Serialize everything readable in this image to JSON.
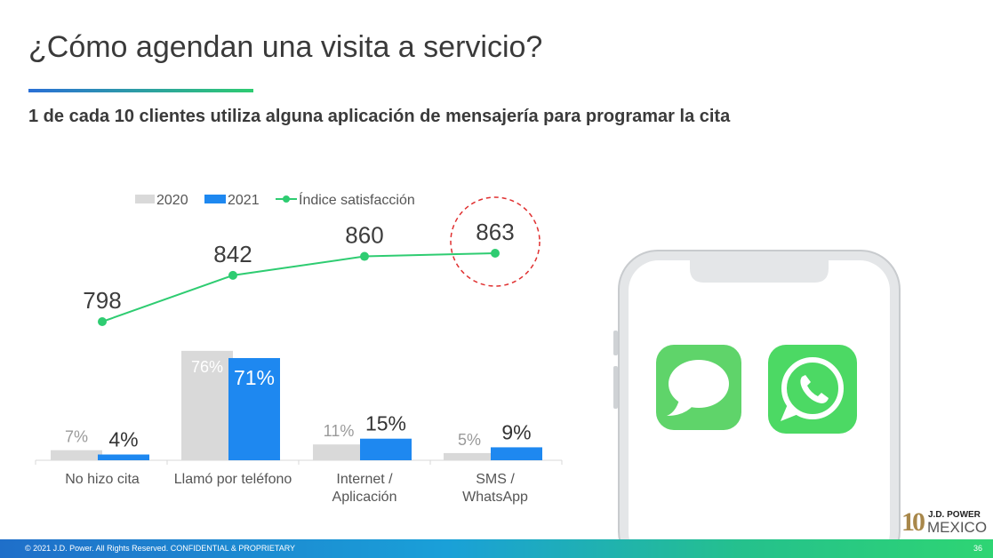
{
  "title": "¿Cómo agendan una visita a servicio?",
  "subtitle": "1 de cada 10 clientes utiliza alguna aplicación de mensajería para programar la cita",
  "chart_data": {
    "type": "bar",
    "categories": [
      "No hizo cita",
      "Llamó por teléfono",
      "Internet / Aplicación",
      "SMS / WhatsApp"
    ],
    "category_lines": [
      [
        "No hizo cita"
      ],
      [
        "Llamó por teléfono"
      ],
      [
        "Internet /",
        "Aplicación"
      ],
      [
        "SMS /",
        "WhatsApp"
      ]
    ],
    "series": [
      {
        "name": "2020",
        "type": "bar",
        "values": [
          7,
          76,
          11,
          5
        ],
        "labels": [
          "7%",
          "76%",
          "11%",
          "5%"
        ],
        "color": "#d9d9d9",
        "label_color": "#9a9a9a"
      },
      {
        "name": "2021",
        "type": "bar",
        "values": [
          4,
          71,
          15,
          9
        ],
        "labels": [
          "4%",
          "71%",
          "15%",
          "9%"
        ],
        "color": "#1e88f0",
        "label_color": "#333333"
      },
      {
        "name": "Índice satisfacción",
        "type": "line",
        "values": [
          798,
          842,
          860,
          863
        ],
        "labels": [
          "798",
          "842",
          "860",
          "863"
        ],
        "color": "#2ecc71"
      }
    ],
    "legend_position": "top",
    "highlight": {
      "category": "SMS / WhatsApp",
      "series": "Índice satisfacción",
      "style": "dashed red circle",
      "color": "#e03030"
    },
    "grid": false
  },
  "phone": {
    "apps": [
      {
        "icon": "messages-icon",
        "color": "#5fd46a"
      },
      {
        "icon": "whatsapp-icon",
        "color": "#4cd964"
      }
    ]
  },
  "footer": {
    "copyright": "© 2021 J.D. Power. All Rights Reserved. CONFIDENTIAL & PROPRIETARY",
    "page_number": "36"
  },
  "logo": {
    "number": "10",
    "brand": "J.D. POWER",
    "country": "MEXICO"
  },
  "colors": {
    "accent_blue": "#1e88f0",
    "accent_green": "#2ecc71",
    "highlight_red": "#e03030"
  }
}
